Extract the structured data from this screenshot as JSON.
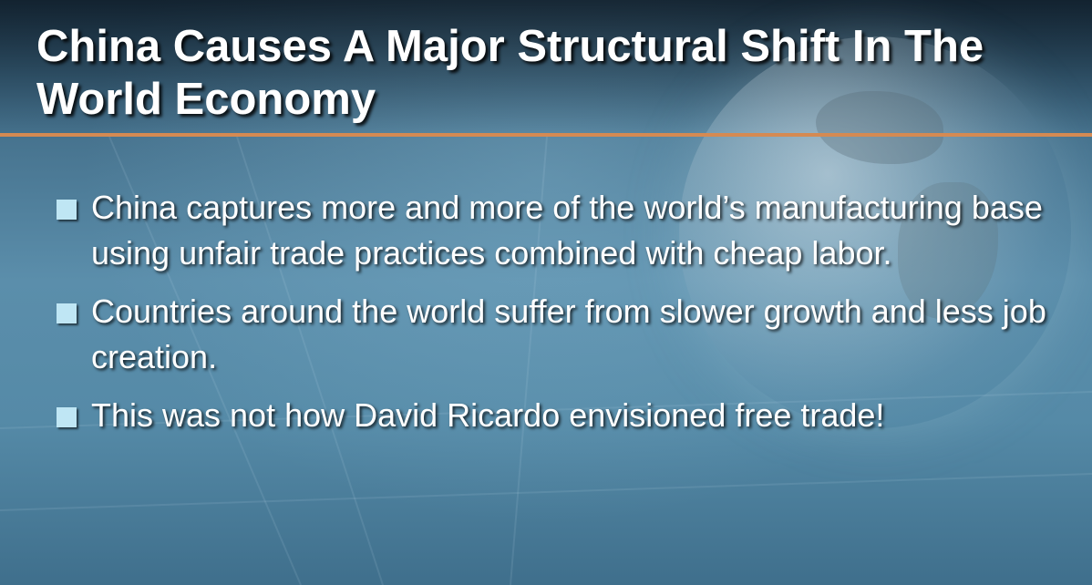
{
  "slide": {
    "title": "China Causes A Major Structural Shift In The World Economy",
    "bullets": [
      {
        "text": "China captures more and more of the world’s manufacturing base using unfair trade practices combined with cheap labor."
      },
      {
        "text": "Countries around the world suffer from slower growth and less job creation."
      },
      {
        "text": "This was not how David Ricardo envisioned free trade!"
      }
    ]
  },
  "colors": {
    "accent_rule": "#d58a52",
    "bullet_square": "#bfe6f4",
    "text": "#ffffff"
  }
}
